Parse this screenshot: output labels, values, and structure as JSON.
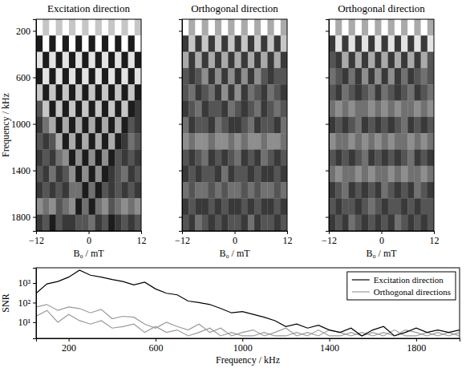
{
  "chart_data": [
    {
      "type": "heatmap",
      "title": "Excitation direction",
      "x_label": "B₀ / mT",
      "y_label": "Frequency / kHz",
      "xlim": [
        -12,
        12
      ],
      "xticks": [
        {
          "value": -12,
          "label": "−12"
        },
        0,
        12
      ],
      "ylim": [
        100,
        1920
      ],
      "yticks": [
        200,
        600,
        1000,
        1400,
        1800
      ],
      "x_bins": [
        -12,
        -10.5,
        -9,
        -7.5,
        -6,
        -4.5,
        -3,
        -1.5,
        0,
        1.5,
        3,
        4.5,
        6,
        7.5,
        9,
        10.5,
        12
      ],
      "y_bins": [
        100,
        240,
        380,
        520,
        660,
        800,
        940,
        1080,
        1220,
        1360,
        1500,
        1640,
        1780,
        1920
      ],
      "zlim": [
        0,
        9
      ],
      "cells": [
        [
          9,
          7,
          9,
          7,
          9,
          7,
          9,
          7,
          9,
          7,
          9,
          7,
          9,
          7,
          9,
          7
        ],
        [
          1,
          9,
          1,
          9,
          1,
          9,
          1,
          9,
          1,
          9,
          1,
          9,
          1,
          9,
          1,
          9
        ],
        [
          8,
          1,
          8,
          1,
          8,
          1,
          8,
          1,
          8,
          1,
          8,
          1,
          8,
          1,
          8,
          1
        ],
        [
          1,
          8,
          1,
          8,
          1,
          8,
          1,
          8,
          1,
          8,
          1,
          8,
          1,
          8,
          1,
          8
        ],
        [
          7,
          1,
          7,
          1,
          7,
          1,
          7,
          1,
          7,
          1,
          7,
          1,
          7,
          1,
          7,
          1
        ],
        [
          3,
          7,
          1,
          7,
          1,
          7,
          1,
          7,
          1,
          7,
          1,
          7,
          1,
          7,
          1,
          2
        ],
        [
          2,
          4,
          6,
          1,
          6,
          1,
          6,
          1,
          6,
          1,
          6,
          1,
          6,
          1,
          3,
          2
        ],
        [
          3,
          2,
          3,
          6,
          1,
          6,
          1,
          6,
          1,
          6,
          1,
          6,
          1,
          2,
          4,
          3
        ],
        [
          2,
          3,
          2,
          4,
          5,
          1,
          5,
          1,
          5,
          1,
          5,
          1,
          3,
          2,
          3,
          2
        ],
        [
          3,
          2,
          4,
          2,
          3,
          5,
          1,
          5,
          1,
          5,
          1,
          2,
          3,
          4,
          2,
          3
        ],
        [
          2,
          3,
          2,
          3,
          2,
          4,
          4,
          1,
          4,
          1,
          3,
          2,
          3,
          2,
          3,
          2
        ],
        [
          5,
          4,
          5,
          3,
          4,
          5,
          1,
          4,
          1,
          4,
          5,
          3,
          4,
          5,
          4,
          5
        ],
        [
          2,
          3,
          1,
          3,
          2,
          2,
          3,
          3,
          4,
          2,
          3,
          1,
          2,
          3,
          2,
          3
        ]
      ]
    },
    {
      "type": "heatmap",
      "title": "Orthogonal direction",
      "x_label": "B₀ / mT",
      "tick_labels": "x",
      "xlim": [
        -12,
        12
      ],
      "xticks": [
        {
          "value": -12,
          "label": "−12"
        },
        0,
        12
      ],
      "ylim": [
        100,
        1920
      ],
      "yticks": [
        200,
        600,
        1000,
        1400,
        1800
      ],
      "x_bins": [
        -12,
        -10.5,
        -9,
        -7.5,
        -6,
        -4.5,
        -3,
        -1.5,
        0,
        1.5,
        3,
        4.5,
        6,
        7.5,
        9,
        10.5,
        12
      ],
      "y_bins": [
        100,
        240,
        380,
        520,
        660,
        800,
        940,
        1080,
        1220,
        1360,
        1500,
        1640,
        1780,
        1920
      ],
      "zlim": [
        0,
        9
      ],
      "cells": [
        [
          9,
          6,
          9,
          6,
          9,
          6,
          9,
          6,
          9,
          6,
          9,
          6,
          9,
          6,
          9,
          6
        ],
        [
          2,
          7,
          2,
          7,
          2,
          7,
          2,
          7,
          2,
          7,
          2,
          7,
          2,
          7,
          2,
          7
        ],
        [
          6,
          2,
          6,
          2,
          6,
          2,
          6,
          2,
          6,
          2,
          6,
          2,
          6,
          2,
          6,
          2
        ],
        [
          3,
          2,
          3,
          5,
          2,
          5,
          2,
          5,
          2,
          5,
          2,
          5,
          3,
          2,
          3,
          3
        ],
        [
          3,
          4,
          2,
          3,
          4,
          2,
          5,
          2,
          5,
          2,
          4,
          3,
          2,
          4,
          3,
          2
        ],
        [
          2,
          3,
          4,
          2,
          3,
          3,
          2,
          4,
          3,
          2,
          3,
          4,
          2,
          3,
          4,
          3
        ],
        [
          4,
          2,
          3,
          3,
          2,
          4,
          3,
          2,
          2,
          3,
          4,
          2,
          3,
          3,
          2,
          4
        ],
        [
          5,
          4,
          5,
          5,
          4,
          5,
          5,
          4,
          5,
          4,
          5,
          5,
          4,
          5,
          5,
          4
        ],
        [
          3,
          2,
          3,
          4,
          2,
          3,
          2,
          3,
          4,
          2,
          3,
          2,
          4,
          3,
          2,
          3
        ],
        [
          2,
          3,
          2,
          3,
          3,
          2,
          4,
          2,
          3,
          3,
          2,
          3,
          2,
          2,
          3,
          2
        ],
        [
          4,
          3,
          4,
          4,
          3,
          4,
          3,
          4,
          4,
          3,
          4,
          3,
          4,
          4,
          3,
          4
        ],
        [
          2,
          3,
          2,
          2,
          3,
          2,
          3,
          2,
          2,
          3,
          2,
          3,
          2,
          2,
          3,
          2
        ],
        [
          3,
          2,
          4,
          3,
          2,
          3,
          2,
          3,
          3,
          2,
          4,
          2,
          3,
          3,
          2,
          3
        ]
      ]
    },
    {
      "type": "heatmap",
      "title": "Orthogonal direction",
      "x_label": "B₀ / mT",
      "tick_labels": "x",
      "xlim": [
        -12,
        12
      ],
      "xticks": [
        {
          "value": -12,
          "label": "−12"
        },
        0,
        12
      ],
      "ylim": [
        100,
        1920
      ],
      "yticks": [
        200,
        600,
        1000,
        1400,
        1800
      ],
      "x_bins": [
        -12,
        -10.5,
        -9,
        -7.5,
        -6,
        -4.5,
        -3,
        -1.5,
        0,
        1.5,
        3,
        4.5,
        6,
        7.5,
        9,
        10.5,
        12
      ],
      "y_bins": [
        100,
        240,
        380,
        520,
        660,
        800,
        940,
        1080,
        1220,
        1360,
        1500,
        1640,
        1780,
        1920
      ],
      "zlim": [
        0,
        9
      ],
      "cells": [
        [
          9,
          6,
          9,
          6,
          9,
          6,
          9,
          6,
          9,
          6,
          9,
          6,
          9,
          6,
          9,
          6
        ],
        [
          2,
          8,
          2,
          8,
          2,
          8,
          2,
          8,
          2,
          8,
          2,
          8,
          2,
          8,
          2,
          8
        ],
        [
          3,
          2,
          6,
          2,
          6,
          2,
          6,
          2,
          6,
          2,
          6,
          2,
          6,
          2,
          6,
          3
        ],
        [
          4,
          3,
          2,
          4,
          2,
          5,
          2,
          5,
          2,
          5,
          2,
          4,
          2,
          3,
          4,
          3
        ],
        [
          3,
          2,
          4,
          3,
          2,
          3,
          4,
          2,
          4,
          3,
          2,
          3,
          4,
          2,
          3,
          4
        ],
        [
          4,
          5,
          4,
          5,
          4,
          4,
          5,
          4,
          5,
          4,
          5,
          4,
          4,
          5,
          4,
          5
        ],
        [
          2,
          3,
          2,
          3,
          4,
          2,
          3,
          2,
          3,
          2,
          3,
          4,
          2,
          3,
          2,
          3
        ],
        [
          5,
          4,
          4,
          5,
          4,
          5,
          4,
          5,
          4,
          5,
          4,
          4,
          5,
          4,
          5,
          4
        ],
        [
          3,
          2,
          3,
          2,
          3,
          4,
          2,
          3,
          2,
          3,
          2,
          3,
          4,
          2,
          3,
          2
        ],
        [
          4,
          5,
          4,
          4,
          5,
          4,
          5,
          4,
          4,
          5,
          4,
          5,
          4,
          4,
          5,
          4
        ],
        [
          2,
          3,
          4,
          2,
          3,
          2,
          3,
          2,
          4,
          3,
          2,
          3,
          2,
          4,
          3,
          2
        ],
        [
          3,
          2,
          3,
          3,
          2,
          3,
          4,
          3,
          2,
          3,
          3,
          2,
          3,
          2,
          3,
          3
        ],
        [
          2,
          3,
          2,
          4,
          3,
          2,
          3,
          2,
          3,
          2,
          4,
          3,
          2,
          3,
          2,
          3
        ]
      ]
    },
    {
      "type": "line",
      "x_label": "Frequency / kHz",
      "y_label": "SNR",
      "log": "y",
      "legend": "top-right",
      "xlim": [
        50,
        2000
      ],
      "xticks": [
        200,
        600,
        1000,
        1400,
        1800
      ],
      "ylim": [
        1.5,
        6000
      ],
      "yticks": [
        {
          "value": 10,
          "label": "10¹"
        },
        {
          "value": 100,
          "label": "10²"
        },
        {
          "value": 1000,
          "label": "10³"
        }
      ],
      "x": [
        50,
        100,
        150,
        200,
        250,
        300,
        350,
        400,
        450,
        500,
        550,
        600,
        650,
        700,
        750,
        800,
        850,
        900,
        950,
        1000,
        1050,
        1100,
        1150,
        1200,
        1250,
        1300,
        1350,
        1400,
        1450,
        1500,
        1550,
        1600,
        1650,
        1700,
        1750,
        1800,
        1850,
        1900,
        1950,
        2000
      ],
      "series": [
        {
          "name": "Excitation direction",
          "color": "#000000",
          "values": [
            300,
            900,
            1200,
            2000,
            4500,
            2500,
            2000,
            1500,
            1200,
            800,
            1100,
            500,
            300,
            250,
            120,
            100,
            80,
            50,
            30,
            35,
            25,
            18,
            12,
            6,
            8,
            5,
            7,
            4,
            3,
            5,
            2,
            4,
            6,
            2,
            3,
            5,
            3,
            4,
            3,
            4
          ]
        },
        {
          "name": "Orthogonal directions",
          "color": "#999999",
          "values": [
            60,
            80,
            40,
            60,
            50,
            30,
            45,
            15,
            20,
            18,
            8,
            5,
            10,
            6,
            4,
            8,
            3,
            5,
            2,
            3,
            4,
            2,
            3,
            5,
            2,
            3,
            2,
            4,
            3,
            2,
            3,
            2,
            3,
            2,
            4,
            3,
            2,
            3,
            2,
            3
          ]
        },
        {
          "color": "#999999",
          "values": [
            20,
            40,
            10,
            25,
            12,
            8,
            12,
            5,
            6,
            8,
            3,
            6,
            3,
            4,
            2,
            3,
            5,
            2,
            3,
            2,
            2,
            3,
            2,
            2,
            3,
            2,
            4,
            2,
            2,
            3,
            2,
            3,
            2,
            4,
            2,
            2,
            3,
            2,
            3,
            2
          ]
        }
      ]
    }
  ]
}
